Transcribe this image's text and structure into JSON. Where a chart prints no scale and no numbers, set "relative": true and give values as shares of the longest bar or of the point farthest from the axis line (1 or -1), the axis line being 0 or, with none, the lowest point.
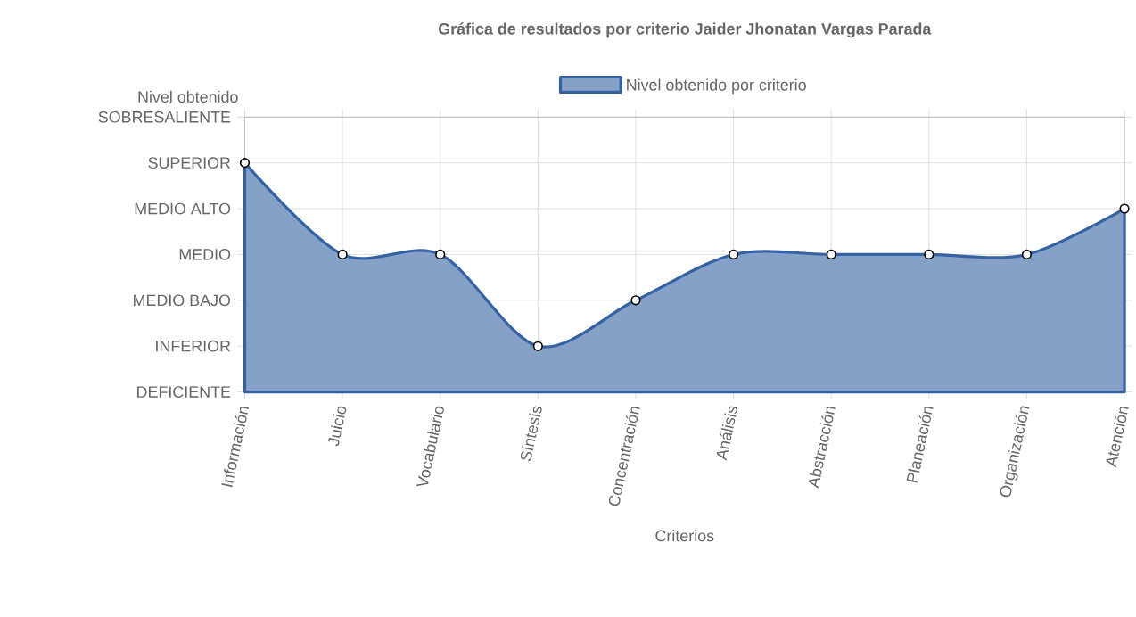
{
  "chart_data": {
    "type": "area",
    "title": "Gráfica de resultados por criterio Jaider Jhonatan Vargas Parada",
    "xlabel": "Criterios",
    "ylabel": "Nivel obtenido",
    "categories": [
      "Información",
      "Juicio",
      "Vocabulario",
      "Síntesis",
      "Concentración",
      "Análisis",
      "Abstracción",
      "Planeación",
      "Organización",
      "Atención"
    ],
    "series": [
      {
        "name": "Nivel obtenido por criterio",
        "color": "#3462a3",
        "values": [
          1,
          0.6,
          0.6,
          0.2,
          0.4,
          0.6,
          0.6,
          0.6,
          0.6,
          0.8
        ]
      }
    ],
    "relative": true,
    "annotations": [
      "DEFICIENTE",
      "INFERIOR",
      "MEDIO BAJO",
      "MEDIO",
      "MEDIO ALTO",
      "SUPERIOR",
      "SOBRESALIENTE"
    ],
    "grid": true,
    "legend": "top",
    "marker": "circle",
    "line_style": "solid"
  }
}
